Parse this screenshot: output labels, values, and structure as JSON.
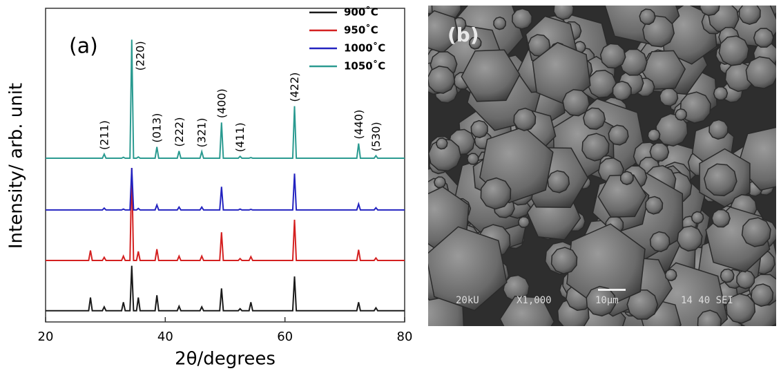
{
  "chart_data": {
    "type": "line",
    "panel_label": "(a)",
    "x_label": "2θ/degrees",
    "y_label": "Intensity/ arb. unit",
    "xlim": [
      20,
      80
    ],
    "xticks": [
      20,
      40,
      60,
      80
    ],
    "ylim": [
      0,
      100
    ],
    "legend": "upper right",
    "x": [
      20,
      27.2,
      27.5,
      27.8,
      29.5,
      29.8,
      30.1,
      32.7,
      33.0,
      33.3,
      34.1,
      34.4,
      34.7,
      35.2,
      35.5,
      35.8,
      38.3,
      38.6,
      38.9,
      42.0,
      42.3,
      42.6,
      45.8,
      46.1,
      46.4,
      49.1,
      49.4,
      49.7,
      52.2,
      52.5,
      52.8,
      54.0,
      54.3,
      54.6,
      61.3,
      61.6,
      61.9,
      72.0,
      72.3,
      72.6,
      74.9,
      75.2,
      75.5,
      80
    ],
    "series": [
      {
        "name": "900˚C",
        "color": "#1a1a1a",
        "values": [
          3.6,
          3.6,
          7.8,
          3.6,
          3.6,
          4.8,
          3.6,
          3.6,
          6.3,
          3.6,
          3.6,
          17.9,
          3.6,
          3.6,
          7.8,
          3.6,
          3.6,
          8.5,
          3.6,
          3.6,
          5.0,
          3.6,
          3.6,
          4.8,
          3.6,
          3.6,
          10.7,
          3.6,
          3.6,
          4.2,
          3.6,
          3.6,
          6.3,
          3.6,
          3.6,
          14.5,
          3.6,
          3.6,
          6.3,
          3.6,
          3.6,
          4.5,
          3.6,
          3.6
        ]
      },
      {
        "name": "950˚C",
        "color": "#d42020",
        "values": [
          19.6,
          19.6,
          22.8,
          19.6,
          19.6,
          20.6,
          19.6,
          19.6,
          21.0,
          19.6,
          19.6,
          49.1,
          19.6,
          19.6,
          22.5,
          19.6,
          19.6,
          23.2,
          19.6,
          19.6,
          21.0,
          19.6,
          19.6,
          21.0,
          19.6,
          19.6,
          28.6,
          19.6,
          19.6,
          20.2,
          19.6,
          19.6,
          20.8,
          19.6,
          19.6,
          32.6,
          19.6,
          19.6,
          23.0,
          19.6,
          19.6,
          20.4,
          19.6,
          19.6
        ]
      },
      {
        "name": "1000˚C",
        "color": "#2323c0",
        "values": [
          35.7,
          35.7,
          35.7,
          35.7,
          35.7,
          36.3,
          35.7,
          35.7,
          36.0,
          35.7,
          35.7,
          49.1,
          35.7,
          35.7,
          36.2,
          35.7,
          35.7,
          37.3,
          35.7,
          35.7,
          36.6,
          35.7,
          35.7,
          36.6,
          35.7,
          35.7,
          43.1,
          35.7,
          35.7,
          36.0,
          35.7,
          35.7,
          35.9,
          35.7,
          35.7,
          47.3,
          35.7,
          35.7,
          37.6,
          35.7,
          35.7,
          36.4,
          35.7,
          35.7
        ]
      },
      {
        "name": "1050˚C",
        "color": "#2a9a90",
        "values": [
          52.2,
          52.2,
          52.2,
          52.2,
          52.2,
          53.5,
          52.2,
          52.2,
          52.5,
          52.2,
          52.2,
          90,
          52.2,
          52.2,
          52.6,
          52.2,
          52.2,
          55.8,
          52.2,
          52.2,
          54.5,
          52.2,
          52.2,
          54.3,
          52.2,
          52.2,
          63.6,
          52.2,
          52.2,
          52.8,
          52.2,
          52.2,
          52.4,
          52.2,
          52.2,
          68.8,
          52.2,
          52.2,
          56.9,
          52.2,
          52.2,
          53.0,
          52.2,
          52.2
        ]
      }
    ],
    "annotations": [
      {
        "label": "(211)",
        "x": 29.8
      },
      {
        "label": "(220)",
        "x": 34.4
      },
      {
        "label": "(013)",
        "x": 38.6
      },
      {
        "label": "(222)",
        "x": 42.3
      },
      {
        "label": "(321)",
        "x": 46.1
      },
      {
        "label": "(400)",
        "x": 49.4
      },
      {
        "label": "(411)",
        "x": 52.5
      },
      {
        "label": "(422)",
        "x": 61.6
      },
      {
        "label": "(440)",
        "x": 72.3
      },
      {
        "label": "(530)",
        "x": 75.2
      }
    ]
  },
  "image_panel": {
    "panel_label": "(b)",
    "info": [
      "20kU",
      "X1,000",
      "10μm",
      "14 40 SEI"
    ]
  }
}
